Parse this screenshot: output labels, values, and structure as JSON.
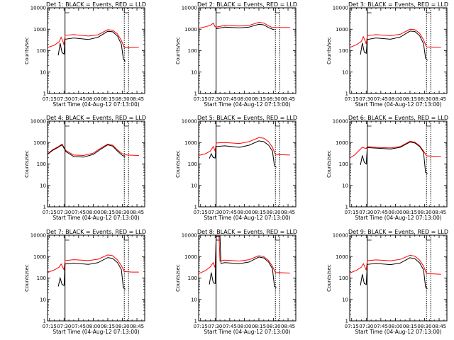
{
  "figure": {
    "xaxis_label": "Start Time (04-Aug-12 07:13:00)",
    "yaxis_label": "Counts/sec",
    "x_tick_labels": [
      "07:15",
      "07:30",
      "07:45",
      "08:00",
      "08:15",
      "08:30",
      "08:45"
    ],
    "y_tick_labels": [
      "1",
      "10",
      "100",
      "1000",
      "10000"
    ],
    "colors": {
      "events": "#000000",
      "lld": "#ff0000",
      "frame": "#000000",
      "background": "#ffffff"
    }
  },
  "chart_data": [
    {
      "type": "line",
      "title": "Det 1: BLACK = Events, RED = LLD",
      "xlabel": "Start Time (04-Aug-12 07:13:00)",
      "ylabel": "Counts/sec",
      "xlim": [
        "07:13",
        "08:53"
      ],
      "ylim": [
        1,
        10000
      ],
      "yscale": "log",
      "markers": [
        "07:31",
        "08:32"
      ],
      "series": [
        {
          "name": "LLD",
          "color": "#ff0000",
          "x": [
            "07:13",
            "07:20",
            "07:25",
            "07:27",
            "07:29",
            "07:30",
            "07:31",
            "07:40",
            "07:55",
            "08:05",
            "08:15",
            "08:20",
            "08:25",
            "08:29",
            "08:32",
            "08:40",
            "08:47"
          ],
          "y": [
            140,
            180,
            260,
            420,
            260,
            180,
            520,
            560,
            480,
            550,
            950,
            900,
            600,
            300,
            140,
            140,
            145
          ]
        },
        {
          "name": "Events",
          "color": "#000000",
          "x": [
            "07:24",
            "07:26",
            "07:28",
            "07:30",
            "07:31",
            "07:40",
            "07:55",
            "08:05",
            "08:15",
            "08:20",
            "08:25",
            "08:29",
            "08:31",
            "08:33"
          ],
          "y": [
            60,
            220,
            80,
            70,
            340,
            390,
            330,
            420,
            800,
            760,
            480,
            200,
            40,
            32
          ]
        }
      ]
    },
    {
      "type": "line",
      "title": "Det 2: BLACK = Events, RED = LLD",
      "xlabel": "Start Time (04-Aug-12 07:13:00)",
      "ylabel": "Counts/sec",
      "xlim": [
        "07:13",
        "08:53"
      ],
      "ylim": [
        1,
        10000
      ],
      "yscale": "log",
      "markers": [
        "07:31",
        "08:32"
      ],
      "series": [
        {
          "name": "LLD",
          "color": "#ff0000",
          "x": [
            "07:13",
            "07:20",
            "07:25",
            "07:28",
            "07:30",
            "07:31",
            "07:40",
            "07:55",
            "08:05",
            "08:15",
            "08:20",
            "08:25",
            "08:29",
            "08:32",
            "08:40",
            "08:47"
          ],
          "y": [
            1100,
            1300,
            1500,
            1900,
            1300,
            1250,
            1500,
            1400,
            1500,
            2100,
            1950,
            1450,
            1200,
            1200,
            1200,
            1200
          ]
        },
        {
          "name": "Events",
          "color": "#000000",
          "x": [
            "07:31",
            "07:40",
            "07:55",
            "08:05",
            "08:15",
            "08:20",
            "08:25",
            "08:29",
            "08:31"
          ],
          "y": [
            1050,
            1250,
            1150,
            1250,
            1700,
            1600,
            1200,
            1000,
            950
          ]
        }
      ]
    },
    {
      "type": "line",
      "title": "Det 3: BLACK = Events, RED = LLD",
      "xlabel": "Start Time (04-Aug-12 07:13:00)",
      "ylabel": "Counts/sec",
      "xlim": [
        "07:13",
        "08:53"
      ],
      "ylim": [
        1,
        10000
      ],
      "yscale": "log",
      "markers": [
        "07:31",
        "08:32"
      ],
      "series": [
        {
          "name": "LLD",
          "color": "#ff0000",
          "x": [
            "07:13",
            "07:20",
            "07:25",
            "07:27",
            "07:29",
            "07:30",
            "07:31",
            "07:40",
            "07:55",
            "08:05",
            "08:15",
            "08:20",
            "08:25",
            "08:29",
            "08:32",
            "08:40",
            "08:47"
          ],
          "y": [
            140,
            190,
            270,
            450,
            280,
            200,
            500,
            560,
            500,
            580,
            1000,
            950,
            640,
            320,
            150,
            145,
            145
          ]
        },
        {
          "name": "Events",
          "color": "#000000",
          "x": [
            "07:24",
            "07:26",
            "07:28",
            "07:30",
            "07:31",
            "07:40",
            "07:55",
            "08:05",
            "08:15",
            "08:20",
            "08:25",
            "08:29",
            "08:31",
            "08:33"
          ],
          "y": [
            65,
            230,
            85,
            75,
            330,
            390,
            340,
            430,
            820,
            780,
            500,
            210,
            45,
            35
          ]
        }
      ]
    },
    {
      "type": "line",
      "title": "Det 4: BLACK = Events, RED = LLD",
      "xlabel": "Start Time (04-Aug-12 07:13:00)",
      "ylabel": "Counts/sec",
      "xlim": [
        "07:13",
        "08:53"
      ],
      "ylim": [
        1,
        10000
      ],
      "yscale": "log",
      "markers": [
        "07:31",
        "08:32"
      ],
      "series": [
        {
          "name": "LLD",
          "color": "#ff0000",
          "x": [
            "07:13",
            "07:18",
            "07:24",
            "07:28",
            "07:32",
            "07:40",
            "07:50",
            "08:00",
            "08:08",
            "08:15",
            "08:20",
            "08:25",
            "08:30",
            "08:35",
            "08:47"
          ],
          "y": [
            300,
            450,
            650,
            850,
            420,
            260,
            250,
            320,
            560,
            850,
            750,
            450,
            300,
            260,
            250
          ]
        },
        {
          "name": "Events",
          "color": "#000000",
          "x": [
            "07:13",
            "07:18",
            "07:24",
            "07:28",
            "07:32",
            "07:40",
            "07:50",
            "08:00",
            "08:08",
            "08:15",
            "08:20",
            "08:25",
            "08:30",
            "08:33"
          ],
          "y": [
            280,
            420,
            600,
            780,
            380,
            220,
            210,
            280,
            500,
            780,
            680,
            400,
            250,
            220
          ]
        }
      ]
    },
    {
      "type": "line",
      "title": "Det 5: BLACK = Events, RED = LLD",
      "xlabel": "Start Time (04-Aug-12 07:13:00)",
      "ylabel": "Counts/sec",
      "xlim": [
        "07:13",
        "08:53"
      ],
      "ylim": [
        1,
        10000
      ],
      "yscale": "log",
      "markers": [
        "07:31",
        "08:32"
      ],
      "series": [
        {
          "name": "LLD",
          "color": "#ff0000",
          "x": [
            "07:13",
            "07:20",
            "07:25",
            "07:28",
            "07:30",
            "07:31",
            "07:40",
            "07:55",
            "08:05",
            "08:15",
            "08:20",
            "08:25",
            "08:29",
            "08:32",
            "08:40",
            "08:47"
          ],
          "y": [
            250,
            300,
            400,
            650,
            400,
            950,
            1000,
            900,
            1100,
            1700,
            1600,
            1100,
            600,
            280,
            270,
            260
          ]
        },
        {
          "name": "Events",
          "color": "#000000",
          "x": [
            "07:24",
            "07:26",
            "07:28",
            "07:30",
            "07:31",
            "07:40",
            "07:55",
            "08:05",
            "08:15",
            "08:20",
            "08:25",
            "08:29",
            "08:31",
            "08:33"
          ],
          "y": [
            180,
            300,
            200,
            190,
            650,
            700,
            600,
            750,
            1200,
            1100,
            750,
            400,
            80,
            70
          ]
        }
      ]
    },
    {
      "type": "line",
      "title": "Det 6: BLACK = Events, RED = LLD",
      "xlabel": "Start Time (04-Aug-12 07:13:00)",
      "ylabel": "Counts/sec",
      "xlim": [
        "07:13",
        "08:53"
      ],
      "ylim": [
        1,
        10000
      ],
      "yscale": "log",
      "markers": [
        "07:31",
        "08:32"
      ],
      "series": [
        {
          "name": "LLD",
          "color": "#ff0000",
          "x": [
            "07:13",
            "07:18",
            "07:22",
            "07:26",
            "07:30",
            "07:31",
            "07:40",
            "07:55",
            "08:05",
            "08:15",
            "08:20",
            "08:25",
            "08:29",
            "08:32",
            "08:40",
            "08:47"
          ],
          "y": [
            190,
            260,
            400,
            600,
            520,
            650,
            600,
            560,
            650,
            1150,
            1050,
            700,
            400,
            240,
            230,
            220
          ]
        },
        {
          "name": "Events",
          "color": "#000000",
          "x": [
            "07:24",
            "07:26",
            "07:28",
            "07:30",
            "07:31",
            "07:40",
            "07:55",
            "08:05",
            "08:15",
            "08:20",
            "08:25",
            "08:29",
            "08:31",
            "08:33"
          ],
          "y": [
            90,
            250,
            120,
            100,
            580,
            550,
            500,
            600,
            1050,
            950,
            650,
            350,
            40,
            35
          ]
        }
      ]
    },
    {
      "type": "line",
      "title": "Det 7: BLACK = Events, RED = LLD",
      "xlabel": "Start Time (04-Aug-12 07:13:00)",
      "ylabel": "Counts/sec",
      "xlim": [
        "07:13",
        "08:53"
      ],
      "ylim": [
        1,
        10000
      ],
      "yscale": "log",
      "markers": [
        "07:31",
        "08:32"
      ],
      "series": [
        {
          "name": "LLD",
          "color": "#ff0000",
          "x": [
            "07:13",
            "07:20",
            "07:25",
            "07:27",
            "07:29",
            "07:30",
            "07:31",
            "07:40",
            "07:55",
            "08:05",
            "08:15",
            "08:20",
            "08:25",
            "08:29",
            "08:32",
            "08:40",
            "08:47"
          ],
          "y": [
            180,
            240,
            320,
            450,
            300,
            240,
            650,
            720,
            650,
            750,
            1200,
            1100,
            700,
            380,
            200,
            190,
            190
          ]
        },
        {
          "name": "Events",
          "color": "#000000",
          "x": [
            "07:24",
            "07:26",
            "07:28",
            "07:30",
            "07:31",
            "07:40",
            "07:55",
            "08:05",
            "08:15",
            "08:20",
            "08:25",
            "08:29",
            "08:31",
            "08:33"
          ],
          "y": [
            40,
            100,
            50,
            45,
            450,
            500,
            430,
            520,
            900,
            820,
            520,
            250,
            35,
            30
          ]
        }
      ]
    },
    {
      "type": "line",
      "title": "Det 8: BLACK = Events, RED = LLD",
      "xlabel": "Start Time (04-Aug-12 07:13:00)",
      "ylabel": "Counts/sec",
      "xlim": [
        "07:13",
        "08:53"
      ],
      "ylim": [
        1,
        10000
      ],
      "yscale": "log",
      "markers": [
        "07:31",
        "08:32"
      ],
      "series": [
        {
          "name": "LLD",
          "color": "#ff0000",
          "x": [
            "07:13",
            "07:20",
            "07:25",
            "07:28",
            "07:30",
            "07:31",
            "07:32",
            "07:33",
            "07:34",
            "07:35",
            "07:40",
            "07:55",
            "08:05",
            "08:15",
            "08:20",
            "08:25",
            "08:29",
            "08:32",
            "08:40",
            "08:47"
          ],
          "y": [
            160,
            220,
            330,
            520,
            300,
            9000,
            9000,
            9000,
            9000,
            620,
            680,
            620,
            720,
            1100,
            1000,
            650,
            350,
            180,
            175,
            170
          ]
        },
        {
          "name": "Events",
          "color": "#000000",
          "x": [
            "07:24",
            "07:26",
            "07:28",
            "07:30",
            "07:31",
            "07:35",
            "07:36",
            "07:40",
            "07:55",
            "08:05",
            "08:15",
            "08:20",
            "08:25",
            "08:29",
            "08:31",
            "08:33"
          ],
          "y": [
            50,
            180,
            60,
            55,
            9000,
            9000,
            480,
            520,
            470,
            560,
            950,
            870,
            560,
            270,
            40,
            35
          ]
        }
      ]
    },
    {
      "type": "line",
      "title": "Det 9: BLACK = Events, RED = LLD",
      "xlabel": "Start Time (04-Aug-12 07:13:00)",
      "ylabel": "Counts/sec",
      "xlim": [
        "07:13",
        "08:53"
      ],
      "ylim": [
        1,
        10000
      ],
      "yscale": "log",
      "markers": [
        "07:31",
        "08:32"
      ],
      "series": [
        {
          "name": "LLD",
          "color": "#ff0000",
          "x": [
            "07:13",
            "07:20",
            "07:25",
            "07:27",
            "07:29",
            "07:30",
            "07:31",
            "07:40",
            "07:55",
            "08:05",
            "08:15",
            "08:20",
            "08:25",
            "08:29",
            "08:32",
            "08:40",
            "08:47"
          ],
          "y": [
            170,
            230,
            320,
            470,
            300,
            230,
            640,
            700,
            640,
            740,
            1150,
            1050,
            680,
            360,
            160,
            155,
            150
          ]
        },
        {
          "name": "Events",
          "color": "#000000",
          "x": [
            "07:24",
            "07:26",
            "07:28",
            "07:30",
            "07:31",
            "07:40",
            "07:55",
            "08:05",
            "08:15",
            "08:20",
            "08:25",
            "08:29",
            "08:31",
            "08:33"
          ],
          "y": [
            45,
            150,
            55,
            50,
            430,
            480,
            420,
            500,
            880,
            800,
            510,
            240,
            38,
            32
          ]
        }
      ]
    }
  ]
}
